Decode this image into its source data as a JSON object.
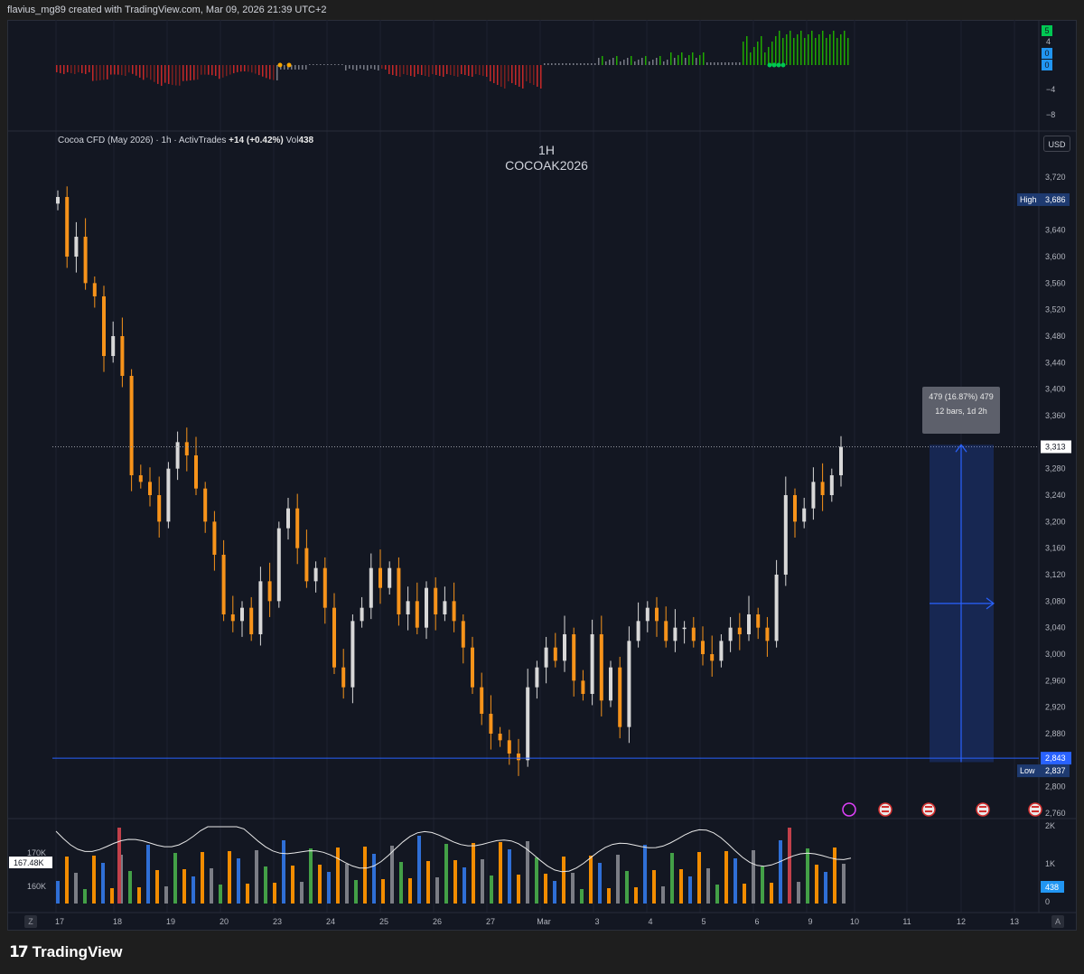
{
  "header": {
    "credit": "flavius_mg89 created with TradingView.com, Mar 09, 2026 21:39 UTC+2"
  },
  "legend": {
    "symbol": "Cocoa CFD (May 2026) · 1h · ActivTrades",
    "change": "+14 (+0.42%)",
    "volume_label": "Vol",
    "volume_value": "438"
  },
  "watermark": {
    "line1": "1H",
    "line2": "COCOAK2026"
  },
  "currency_button": "USD",
  "price_axis": {
    "ticks": [
      "3,720",
      "3,640",
      "3,600",
      "3,560",
      "3,520",
      "3,480",
      "3,440",
      "3,400",
      "3,360",
      "3,280",
      "3,240",
      "3,200",
      "3,160",
      "3,120",
      "3,080",
      "3,040",
      "3,000",
      "2,960",
      "2,920",
      "2,880",
      "2,800",
      "2,760"
    ],
    "high_tag": {
      "label": "High",
      "value": "3,686"
    },
    "last_tag": "3,313",
    "level_tag": "2,843",
    "low_tag": {
      "label": "Low",
      "value": "2,837"
    }
  },
  "osc_axis": {
    "ticks": [
      "4",
      "−4",
      "−8"
    ],
    "tags": [
      "5",
      "0",
      "0"
    ]
  },
  "volume_axis": {
    "ticks_right": [
      "2K",
      "1K",
      "0"
    ],
    "ticks_left": [
      "170K",
      "160K"
    ],
    "left_tag": "167.48K",
    "right_tag": "438"
  },
  "time_axis": {
    "labels": [
      "17",
      "18",
      "19",
      "20",
      "23",
      "24",
      "25",
      "26",
      "27",
      "Mar",
      "3",
      "4",
      "5",
      "6",
      "9",
      "10",
      "11",
      "12",
      "13"
    ],
    "left_button": "Z",
    "right_button": "A"
  },
  "measure_box": {
    "line1": "479 (16.87%) 479",
    "line2": "12 bars, 1d 2h"
  },
  "footer": {
    "logo_mark": "17",
    "brand": "TradingView"
  },
  "colors": {
    "up": "#d8d8d8",
    "down": "#f7931a",
    "blue": "#2962ff",
    "osc_red": "#b71c1c",
    "osc_green": "#1faa00",
    "vol_blue": "#2f6fd6",
    "vol_green": "#43a047",
    "vol_orange": "#f28c00"
  },
  "chart_data": {
    "type": "candlestick",
    "title": "COCOAK2026",
    "timeframe": "1H",
    "ylim": [
      2740,
      3760
    ],
    "x": [
      "17",
      "18",
      "19",
      "20",
      "23",
      "24",
      "25",
      "26",
      "27",
      "Mar",
      "3",
      "4",
      "5",
      "6",
      "9",
      "10"
    ],
    "high": 3686,
    "low": 2837,
    "last": 3313,
    "horizontal_level": 2843,
    "measure": {
      "from": 2837,
      "to": 3316,
      "change": 479,
      "percent": 16.87,
      "bars": 12,
      "duration": "1d 2h"
    },
    "close_path": [
      3690,
      3600,
      3630,
      3560,
      3540,
      3450,
      3480,
      3420,
      3270,
      3260,
      3240,
      3200,
      3280,
      3320,
      3300,
      3250,
      3200,
      3150,
      3060,
      3050,
      3070,
      3030,
      3110,
      3080,
      3190,
      3220,
      3160,
      3110,
      3130,
      3070,
      2980,
      2950,
      3050,
      3070,
      3130,
      3100,
      3130,
      3060,
      3080,
      3040,
      3100,
      3060,
      3080,
      3050,
      3010,
      2950,
      2910,
      2880,
      2870,
      2850,
      2840,
      2950,
      2980,
      3010,
      2990,
      3030,
      2960,
      2940,
      3030,
      2930,
      2980,
      2890,
      3020,
      3050,
      3070,
      3050,
      3020,
      3040,
      3040,
      3020,
      3000,
      2990,
      3020,
      3040,
      3030,
      3060,
      3040,
      3020,
      3120,
      3240,
      3200,
      3220,
      3260,
      3240,
      3270,
      3313
    ]
  }
}
